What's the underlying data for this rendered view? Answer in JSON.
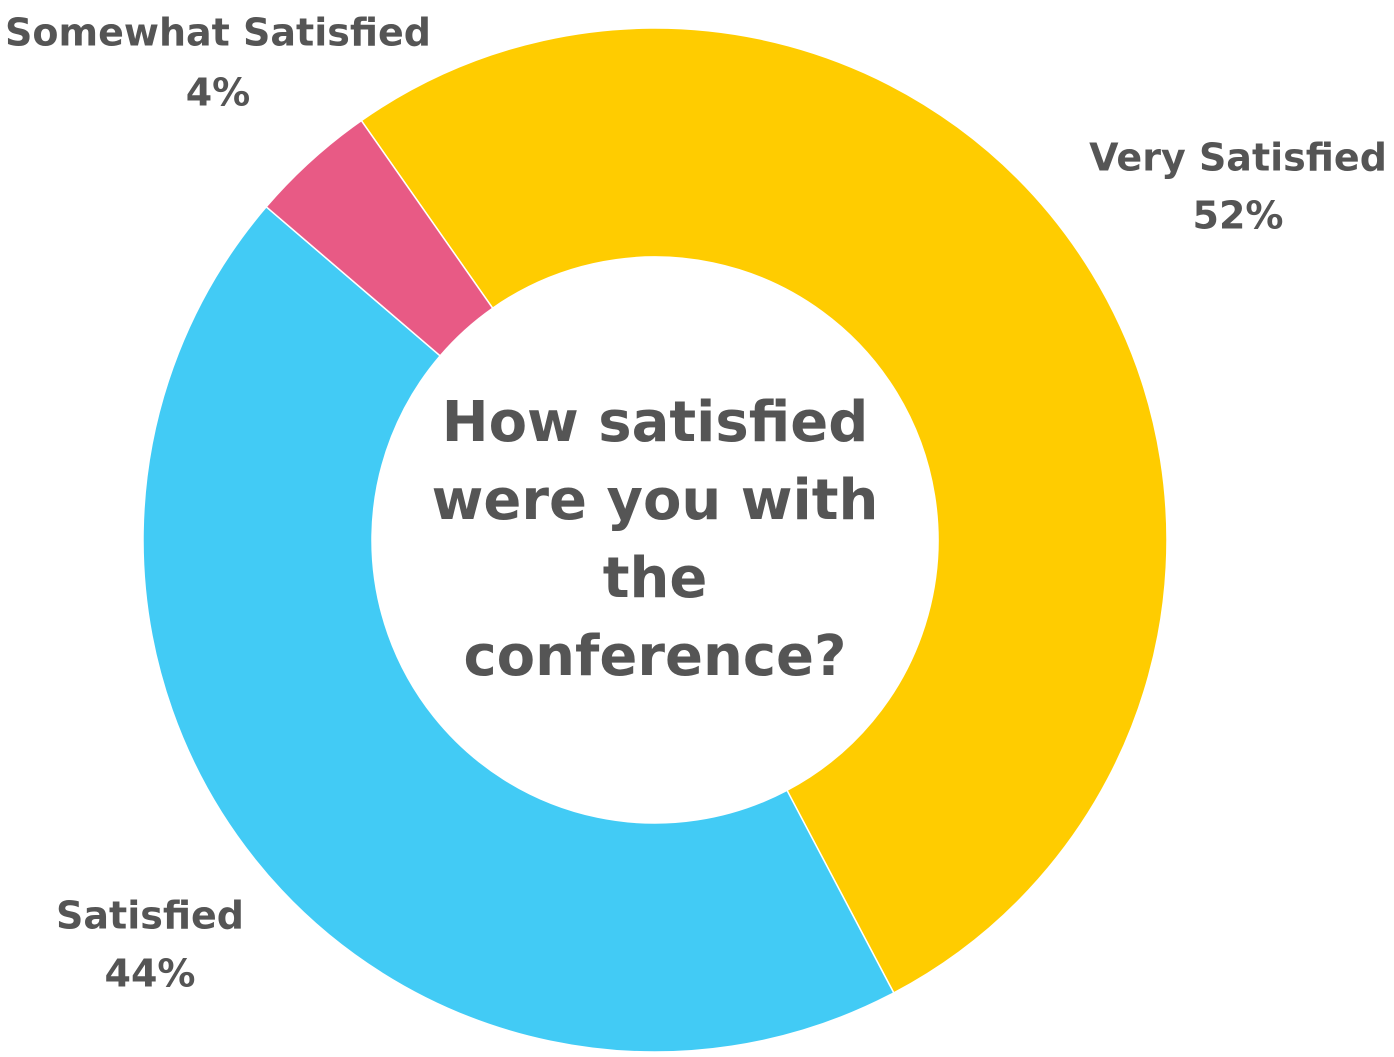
{
  "chart_data": {
    "type": "donut",
    "title": "How satisfied were you with the conference?",
    "categories": [
      "Very Satisfied",
      "Satisfied",
      "Somewhat Satisfied"
    ],
    "values": [
      52,
      44,
      4
    ],
    "value_labels": [
      "52%",
      "44%",
      "4%"
    ],
    "colors": [
      "#FFCC00",
      "#42CBF5",
      "#E85A85"
    ]
  }
}
